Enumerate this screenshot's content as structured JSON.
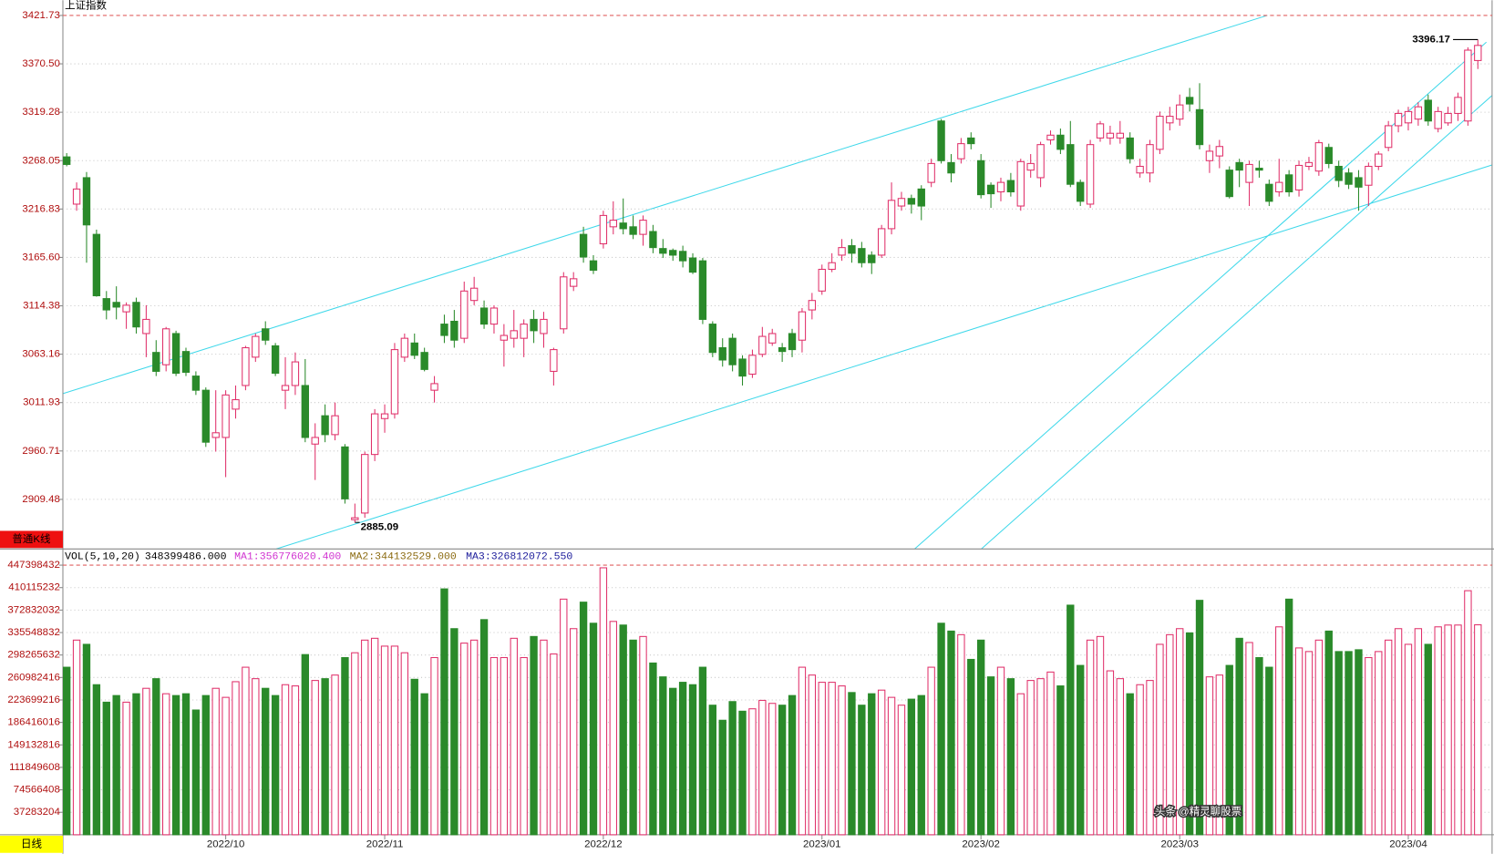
{
  "chart_data": [
    {
      "type": "candlestick",
      "title": "上证指数",
      "mode_label": "普通K线",
      "up_color": "#e0306a",
      "down_color": "#2a8a2a",
      "categories": [
        null,
        null,
        null,
        null,
        null,
        null,
        null,
        null,
        null,
        null,
        null,
        null,
        null,
        null,
        null,
        null,
        "2022/10",
        null,
        null,
        null,
        null,
        null,
        null,
        null,
        null,
        null,
        null,
        null,
        null,
        null,
        null,
        null,
        "2022/11",
        null,
        null,
        null,
        null,
        null,
        null,
        null,
        null,
        null,
        null,
        null,
        null,
        null,
        null,
        null,
        null,
        null,
        null,
        null,
        null,
        null,
        "2022/12",
        null,
        null,
        null,
        null,
        null,
        null,
        null,
        null,
        null,
        null,
        null,
        null,
        null,
        null,
        null,
        null,
        null,
        null,
        null,
        null,
        null,
        "2023/01",
        null,
        null,
        null,
        null,
        null,
        null,
        null,
        null,
        null,
        null,
        null,
        null,
        null,
        null,
        null,
        "2023/02",
        null,
        null,
        null,
        null,
        null,
        null,
        null,
        null,
        null,
        null,
        null,
        null,
        null,
        null,
        null,
        null,
        null,
        null,
        null,
        "2023/03",
        null,
        null,
        null,
        null,
        null,
        null,
        null,
        null,
        null,
        null,
        null,
        null,
        null,
        null,
        null,
        null,
        null,
        null,
        null,
        null,
        null,
        null,
        "2023/04",
        null,
        null,
        null,
        null,
        null,
        null,
        null
      ],
      "open": [
        3272,
        3222,
        3250,
        3190,
        3122,
        3118,
        3108,
        3118,
        3085,
        3065,
        3052,
        3085,
        3066,
        3040,
        3025,
        2975,
        2975,
        3005,
        3030,
        3060,
        3090,
        3072,
        3025,
        3030,
        3030,
        2968,
        2998,
        2978,
        2965,
        2888,
        2895,
        2957,
        2995,
        3000,
        3060,
        3075,
        3065,
        3025,
        3095,
        3098,
        3080,
        3120,
        3112,
        3095,
        3078,
        3080,
        3080,
        3100,
        3085,
        3045,
        3090,
        3135,
        3190,
        3162,
        3180,
        3198,
        3202,
        3198,
        3190,
        3193,
        3175,
        3173,
        3172,
        3165,
        3162,
        3095,
        3070,
        3080,
        3058,
        3042,
        3063,
        3075,
        3070,
        3085,
        3078,
        3110,
        3130,
        3153,
        3168,
        3178,
        3175,
        3168,
        3168,
        3196,
        3220,
        3228,
        3238,
        3245,
        3310,
        3266,
        3270,
        3292,
        3268,
        3242,
        3235,
        3247,
        3220,
        3258,
        3250,
        3290,
        3295,
        3285,
        3245,
        3222,
        3292,
        3292,
        3292,
        3292,
        3255,
        3255,
        3280,
        3308,
        3312,
        3335,
        3322,
        3268,
        3273,
        3258,
        3266,
        3245,
        3260,
        3243,
        3235,
        3253,
        3237,
        3262,
        3257,
        3282,
        3262,
        3255,
        3250,
        3242,
        3262,
        3282,
        3305,
        3308,
        3312,
        3332,
        3302,
        3308,
        3318,
        3310,
        3374
      ],
      "high": [
        3276,
        3245,
        3256,
        3195,
        3130,
        3135,
        3118,
        3123,
        3115,
        3078,
        3092,
        3088,
        3070,
        3045,
        3028,
        3025,
        3025,
        3030,
        3072,
        3085,
        3098,
        3075,
        3060,
        3065,
        3058,
        2990,
        3010,
        3012,
        2968,
        2905,
        2960,
        3005,
        3010,
        3075,
        3085,
        3085,
        3070,
        3040,
        3105,
        3110,
        3140,
        3145,
        3120,
        3115,
        3095,
        3110,
        3100,
        3110,
        3108,
        3070,
        3150,
        3150,
        3198,
        3168,
        3215,
        3225,
        3228,
        3210,
        3210,
        3200,
        3185,
        3175,
        3178,
        3170,
        3165,
        3098,
        3080,
        3085,
        3062,
        3068,
        3092,
        3090,
        3075,
        3090,
        3112,
        3128,
        3158,
        3170,
        3185,
        3185,
        3182,
        3172,
        3200,
        3245,
        3235,
        3232,
        3242,
        3270,
        3312,
        3275,
        3292,
        3298,
        3275,
        3245,
        3250,
        3255,
        3270,
        3275,
        3288,
        3300,
        3302,
        3310,
        3248,
        3290,
        3310,
        3305,
        3310,
        3298,
        3270,
        3290,
        3320,
        3325,
        3338,
        3345,
        3350,
        3285,
        3290,
        3262,
        3270,
        3268,
        3268,
        3248,
        3270,
        3258,
        3268,
        3272,
        3290,
        3286,
        3268,
        3260,
        3258,
        3266,
        3278,
        3310,
        3322,
        3325,
        3330,
        3338,
        3325,
        3325,
        3340,
        3388,
        3396.17
      ],
      "low": [
        3262,
        3215,
        3160,
        3124,
        3100,
        3100,
        3090,
        3085,
        3060,
        3040,
        3045,
        3040,
        3040,
        3020,
        2965,
        2960,
        2933,
        2995,
        3025,
        3055,
        3073,
        3040,
        3005,
        3020,
        2970,
        2930,
        2970,
        2972,
        2905,
        2885.09,
        2890,
        2950,
        2980,
        2995,
        3055,
        3058,
        3045,
        3012,
        3075,
        3070,
        3075,
        3115,
        3090,
        3085,
        3050,
        3070,
        3060,
        3075,
        3070,
        3030,
        3085,
        3130,
        3160,
        3148,
        3175,
        3190,
        3190,
        3185,
        3178,
        3170,
        3165,
        3162,
        3155,
        3148,
        3095,
        3060,
        3050,
        3045,
        3030,
        3038,
        3060,
        3072,
        3055,
        3060,
        3065,
        3100,
        3126,
        3150,
        3162,
        3160,
        3155,
        3148,
        3165,
        3190,
        3215,
        3212,
        3205,
        3240,
        3265,
        3245,
        3265,
        3280,
        3228,
        3218,
        3225,
        3230,
        3215,
        3250,
        3240,
        3285,
        3275,
        3240,
        3220,
        3218,
        3288,
        3285,
        3286,
        3265,
        3250,
        3245,
        3275,
        3300,
        3305,
        3320,
        3280,
        3255,
        3260,
        3228,
        3240,
        3220,
        3250,
        3220,
        3230,
        3230,
        3230,
        3258,
        3252,
        3260,
        3240,
        3238,
        3215,
        3220,
        3258,
        3278,
        3298,
        3300,
        3305,
        3305,
        3298,
        3305,
        3310,
        3305,
        3365
      ],
      "close": [
        3264,
        3238,
        3200,
        3125,
        3110,
        3113,
        3115,
        3092,
        3100,
        3045,
        3090,
        3043,
        3044,
        3025,
        2970,
        2980,
        3020,
        3015,
        3070,
        3082,
        3078,
        3043,
        3030,
        3055,
        2975,
        2975,
        2978,
        2998,
        2910,
        2890,
        2957,
        3000,
        3000,
        3068,
        3080,
        3062,
        3047,
        3032,
        3083,
        3078,
        3130,
        3133,
        3095,
        3112,
        3083,
        3088,
        3095,
        3088,
        3100,
        3068,
        3145,
        3143,
        3166,
        3152,
        3210,
        3205,
        3196,
        3190,
        3205,
        3176,
        3170,
        3168,
        3162,
        3150,
        3100,
        3065,
        3057,
        3052,
        3040,
        3062,
        3082,
        3085,
        3066,
        3068,
        3108,
        3120,
        3153,
        3160,
        3176,
        3170,
        3160,
        3160,
        3196,
        3226,
        3228,
        3222,
        3220,
        3265,
        3268,
        3255,
        3286,
        3286,
        3232,
        3233,
        3245,
        3235,
        3267,
        3265,
        3285,
        3295,
        3280,
        3243,
        3225,
        3285,
        3307,
        3297,
        3297,
        3270,
        3262,
        3285,
        3315,
        3315,
        3327,
        3328,
        3285,
        3278,
        3283,
        3230,
        3258,
        3264,
        3258,
        3225,
        3245,
        3235,
        3263,
        3266,
        3287,
        3265,
        3247,
        3243,
        3240,
        3262,
        3275,
        3305,
        3318,
        3320,
        3325,
        3310,
        3320,
        3318,
        3335,
        3385,
        3390
      ],
      "ylim": [
        2857,
        3421.73
      ],
      "yticks": [
        3421.73,
        {
          "value": 3370.5,
          "label": "3370.50"
        },
        3319.28,
        3268.05,
        3216.83,
        {
          "value": 3165.6,
          "label": "3165.60"
        },
        3114.38,
        3063.16,
        3011.93,
        2960.71,
        2909.48
      ]
    },
    {
      "type": "volume",
      "title": "VOL(5,10,20)",
      "value_label": "348399486.000",
      "period_label": "日线",
      "legend": [
        {
          "name": "MA1:356776020.400",
          "color": "#d030d0"
        },
        {
          "name": "MA2:344132529.000",
          "color": "#8b6a10"
        },
        {
          "name": "MA3:326812072.550",
          "color": "#1a1a9a"
        }
      ],
      "values": [
        278000000,
        323000000,
        316000000,
        249000000,
        220000000,
        231000000,
        220000000,
        234000000,
        243000000,
        259000000,
        234000000,
        231000000,
        234000000,
        207000000,
        231000000,
        243000000,
        228000000,
        254000000,
        278000000,
        259000000,
        243000000,
        231000000,
        249000000,
        247000000,
        299000000,
        256000000,
        259000000,
        265000000,
        294000000,
        302000000,
        323000000,
        326000000,
        313000000,
        313000000,
        302000000,
        258000000,
        234000000,
        294000000,
        408000000,
        342000000,
        318000000,
        323000000,
        357000000,
        294000000,
        294000000,
        326000000,
        294000000,
        329000000,
        323000000,
        300000000,
        391000000,
        342000000,
        386000000,
        351000000,
        443000000,
        354000000,
        348000000,
        323000000,
        329000000,
        285000000,
        262000000,
        243000000,
        253000000,
        249000000,
        278000000,
        215000000,
        190000000,
        221000000,
        205000000,
        209000000,
        223000000,
        218000000,
        215000000,
        231000000,
        278000000,
        265000000,
        253000000,
        253000000,
        247000000,
        236000000,
        215000000,
        234000000,
        240000000,
        228000000,
        215000000,
        225000000,
        231000000,
        278000000,
        351000000,
        338000000,
        332000000,
        291000000,
        323000000,
        262000000,
        278000000,
        259000000,
        234000000,
        256000000,
        259000000,
        270000000,
        247000000,
        381000000,
        281000000,
        323000000,
        329000000,
        272000000,
        259000000,
        234000000,
        249000000,
        256000000,
        316000000,
        332000000,
        342000000,
        335000000,
        389000000,
        262000000,
        265000000,
        281000000,
        326000000,
        319000000,
        294000000,
        278000000,
        345000000,
        391000000,
        310000000,
        304000000,
        323000000,
        338000000,
        304000000,
        304000000,
        307000000,
        294000000,
        304000000,
        323000000,
        342000000,
        316000000,
        342000000,
        316000000,
        345000000,
        348000000,
        348000000,
        405000000,
        348399486
      ],
      "ylim": [
        0,
        447398432
      ],
      "yticks": [
        37283204,
        74566408,
        111849608,
        149132816,
        186416016,
        223699216,
        260982416,
        298265632,
        335548832,
        372832032,
        410115232,
        447398432
      ]
    }
  ],
  "watermark": "头条 @精灵聊股票"
}
